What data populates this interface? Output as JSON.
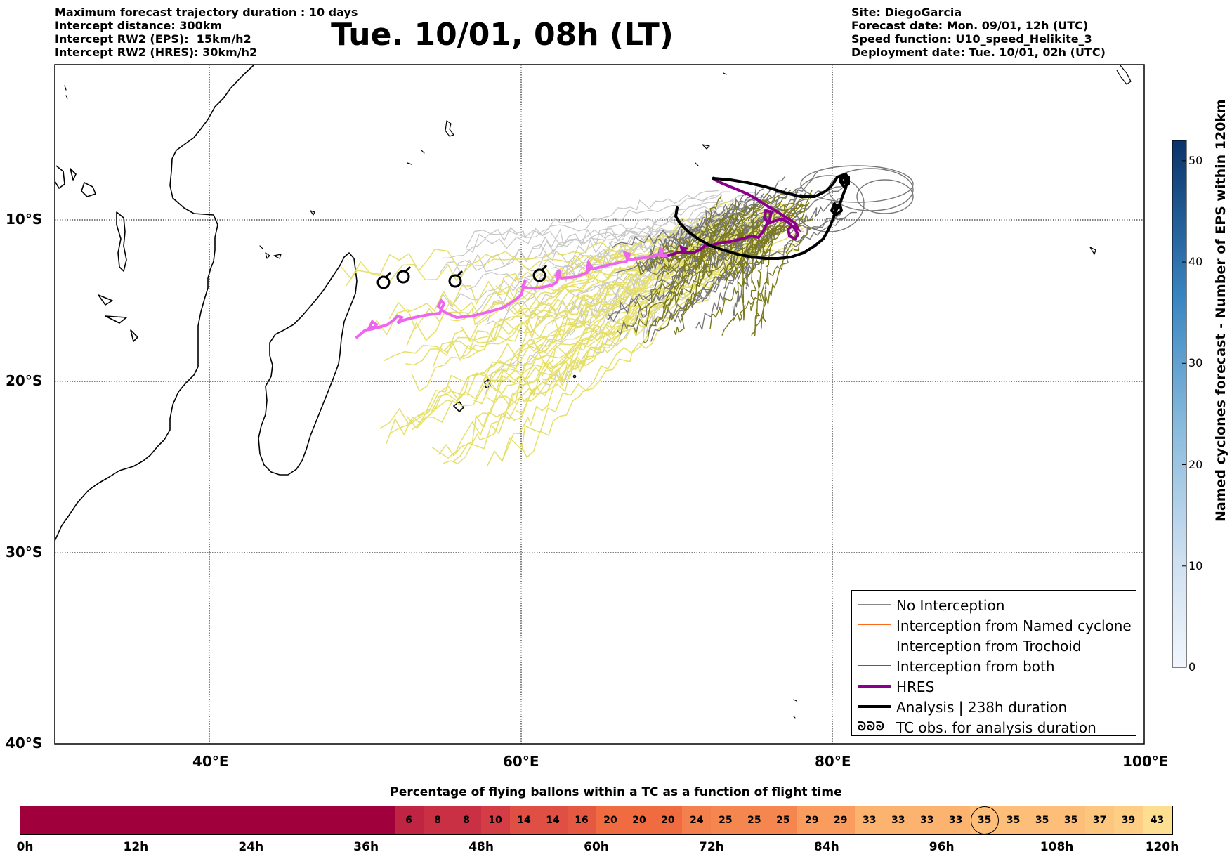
{
  "header_left": [
    "Maximum forecast trajectory duration : 10 days",
    "Intercept distance: 300km",
    "Intercept RW2 (EPS):  15km/h2",
    "Intercept RW2 (HRES): 30km/h2"
  ],
  "header_right": [
    "Site: DiegoGarcia",
    "Forecast date: Mon. 09/01, 12h (UTC)",
    "Speed function: U10_speed_Helikite_3",
    "Deployment date: Tue. 10/01, 02h (UTC)"
  ],
  "title": "Tue. 10/01, 08h (LT)",
  "map": {
    "lat_labels": [
      "10°S",
      "20°S",
      "30°S",
      "40°S"
    ],
    "lon_labels": [
      "40°E",
      "60°E",
      "80°E",
      "100°E"
    ],
    "lon_range": [
      30,
      100
    ],
    "lat_range": [
      -40,
      -0.5
    ],
    "colors": {
      "no_interception": "#888888",
      "named_cyclone": "#ff6a1a",
      "trochoid": "#7a7a1a",
      "both": "#1a8a1a",
      "hres": "#8b008b",
      "hres_early": "#ee66ee",
      "analysis": "#000000",
      "ens_yellow": "#e6e06a",
      "ens_light": "#c8c8c8"
    }
  },
  "legend": {
    "items": [
      {
        "label": "No Interception",
        "color": "#888888",
        "width": 1.5
      },
      {
        "label": "Interception from Named cyclone",
        "color": "#ff6a1a",
        "width": 1.5
      },
      {
        "label": "Interception from Trochoid",
        "color": "#7a7a1a",
        "width": 1.5
      },
      {
        "label": "Interception from both",
        "color": "#1a8a1a",
        "width": 1.5
      },
      {
        "label": "HRES",
        "color": "#8b008b",
        "width": 4
      },
      {
        "label": "Analysis | 238h duration",
        "color": "#000000",
        "width": 4
      },
      {
        "label": "TC obs. for analysis duration",
        "color": "#000000",
        "width": 0,
        "icon": "cyclone-icons"
      }
    ]
  },
  "colorbar": {
    "title": "Named cyclones forecast - Number of EPS within 120km",
    "ticks": [
      "0",
      "10",
      "20",
      "30",
      "40",
      "50"
    ],
    "range": [
      0,
      52
    ]
  },
  "bottom_bar": {
    "title": "Percentage of flying ballons within a TC as a function of flight time",
    "values": [
      "6",
      "8",
      "8",
      "10",
      "14",
      "14",
      "16",
      "20",
      "20",
      "20",
      "24",
      "25",
      "25",
      "25",
      "29",
      "29",
      "33",
      "33",
      "33",
      "33",
      "35",
      "35",
      "35",
      "35",
      "37",
      "39",
      "43"
    ],
    "highlight_index": 20,
    "time_labels": [
      "0h",
      "12h",
      "24h",
      "36h",
      "48h",
      "60h",
      "72h",
      "84h",
      "96h",
      "108h",
      "120h"
    ]
  }
}
